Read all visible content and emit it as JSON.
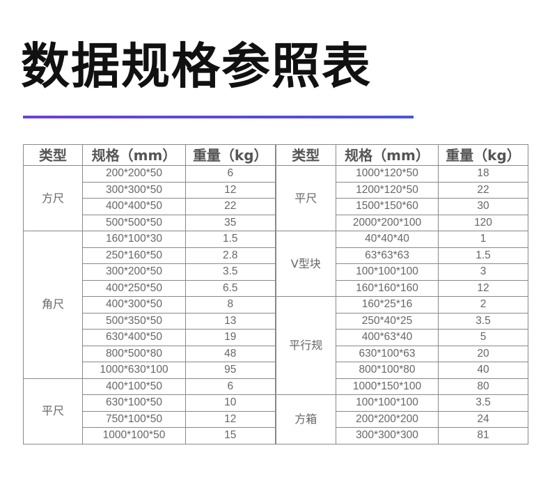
{
  "title": "数据规格参照表",
  "colors": {
    "accent_start": "#6b3fdc",
    "accent_end": "#4b52e2",
    "text": "#666666",
    "border": "#888888"
  },
  "headers": [
    "类型",
    "规格（mm）",
    "重量（kg）",
    "类型",
    "规格（mm）",
    "重量（kg）"
  ],
  "left": [
    {
      "type": "方尺",
      "rows": [
        [
          "200*200*50",
          "6"
        ],
        [
          "300*300*50",
          "12"
        ],
        [
          "400*400*50",
          "22"
        ],
        [
          "500*500*50",
          "35"
        ]
      ]
    },
    {
      "type": "角尺",
      "rows": [
        [
          "160*100*30",
          "1.5"
        ],
        [
          "250*160*50",
          "2.8"
        ],
        [
          "300*200*50",
          "3.5"
        ],
        [
          "400*250*50",
          "6.5"
        ],
        [
          "400*300*50",
          "8"
        ],
        [
          "500*350*50",
          "13"
        ],
        [
          "630*400*50",
          "19"
        ],
        [
          "800*500*80",
          "48"
        ],
        [
          "1000*630*100",
          "95"
        ]
      ]
    },
    {
      "type": "平尺",
      "rows": [
        [
          "400*100*50",
          "6"
        ],
        [
          "630*100*50",
          "10"
        ],
        [
          "750*100*50",
          "12"
        ],
        [
          "1000*100*50",
          "15"
        ]
      ]
    }
  ],
  "right": [
    {
      "type": "平尺",
      "rows": [
        [
          "1000*120*50",
          "18"
        ],
        [
          "1200*120*50",
          "22"
        ],
        [
          "1500*150*60",
          "30"
        ],
        [
          "2000*200*100",
          "120"
        ]
      ]
    },
    {
      "type": "V型块",
      "rows": [
        [
          "40*40*40",
          "1"
        ],
        [
          "63*63*63",
          "1.5"
        ],
        [
          "100*100*100",
          "3"
        ],
        [
          "160*160*160",
          "12"
        ]
      ]
    },
    {
      "type": "平行规",
      "rows": [
        [
          "160*25*16",
          "2"
        ],
        [
          "250*40*25",
          "3.5"
        ],
        [
          "400*63*40",
          "5"
        ],
        [
          "630*100*63",
          "20"
        ],
        [
          "800*100*80",
          "40"
        ],
        [
          "1000*150*100",
          "80"
        ]
      ]
    },
    {
      "type": "方箱",
      "rows": [
        [
          "100*100*100",
          "3.5"
        ],
        [
          "200*200*200",
          "24"
        ],
        [
          "300*300*300",
          "81"
        ]
      ]
    }
  ]
}
